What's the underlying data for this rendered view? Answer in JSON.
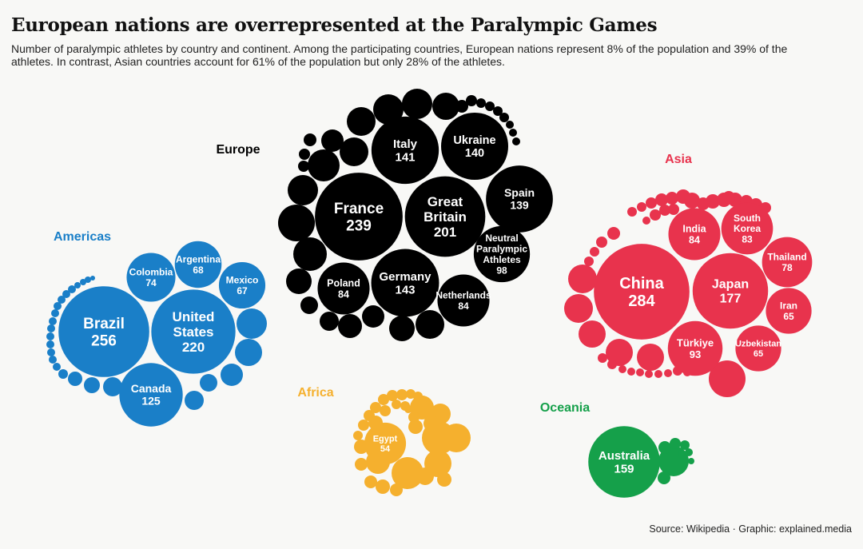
{
  "header": {
    "title": "European nations are overrepresented at the Paralympic Games",
    "subtitle": "Number of paralympic athletes by country and continent. Among the participating countries, European nations represent 8% of the population and 39% of the athletes. In contrast, Asian countries account for 61% of the population but only 28% of the athletes."
  },
  "footer": {
    "source": "Source: Wikipedia · Graphic: explained.media"
  },
  "chart_data": {
    "type": "bubble-cluster",
    "title": "European nations are overrepresented at the Paralympic Games",
    "groups": [
      {
        "name": "Europe",
        "color": "#000000",
        "labeled": [
          {
            "name": "France",
            "value": 239
          },
          {
            "name": "Great Britain",
            "value": 201
          },
          {
            "name": "Germany",
            "value": 143
          },
          {
            "name": "Italy",
            "value": 141
          },
          {
            "name": "Ukraine",
            "value": 140
          },
          {
            "name": "Spain",
            "value": 139
          },
          {
            "name": "Neutral Paralympic Athletes",
            "value": 98
          },
          {
            "name": "Poland",
            "value": 84
          },
          {
            "name": "Netherlands",
            "value": 84
          }
        ]
      },
      {
        "name": "Asia",
        "color": "#e8334d",
        "labeled": [
          {
            "name": "China",
            "value": 284
          },
          {
            "name": "Japan",
            "value": 177
          },
          {
            "name": "Türkiye",
            "value": 93
          },
          {
            "name": "India",
            "value": 84
          },
          {
            "name": "South Korea",
            "value": 83
          },
          {
            "name": "Thailand",
            "value": 78
          },
          {
            "name": "Iran",
            "value": 65
          },
          {
            "name": "Uzbekistan",
            "value": 65
          }
        ]
      },
      {
        "name": "Americas",
        "color": "#1a7fc8",
        "labeled": [
          {
            "name": "Brazil",
            "value": 256
          },
          {
            "name": "United States",
            "value": 220
          },
          {
            "name": "Canada",
            "value": 125
          },
          {
            "name": "Colombia",
            "value": 74
          },
          {
            "name": "Argentina",
            "value": 68
          },
          {
            "name": "Mexico",
            "value": 67
          }
        ]
      },
      {
        "name": "Africa",
        "color": "#f5b02e",
        "labeled": [
          {
            "name": "Egypt",
            "value": 54
          }
        ]
      },
      {
        "name": "Oceania",
        "color": "#15a04a",
        "labeled": [
          {
            "name": "Australia",
            "value": 159
          }
        ]
      }
    ]
  }
}
